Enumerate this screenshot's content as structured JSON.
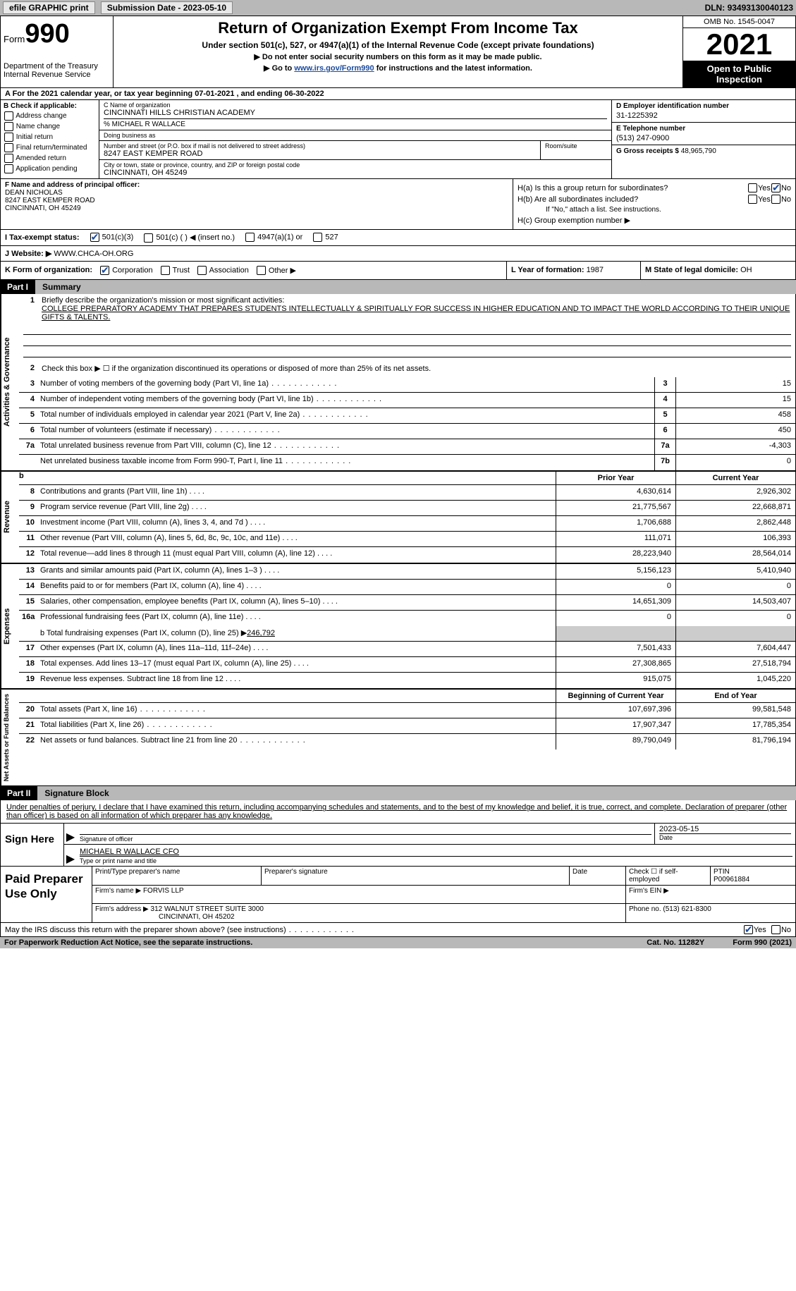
{
  "top": {
    "efile": "efile GRAPHIC print",
    "sub_date_lbl": "Submission Date - ",
    "sub_date": "2023-05-10",
    "dln_lbl": "DLN: ",
    "dln": "93493130040123"
  },
  "header": {
    "form_word": "Form",
    "form_no": "990",
    "dept1": "Department of the Treasury",
    "dept2": "Internal Revenue Service",
    "title": "Return of Organization Exempt From Income Tax",
    "sub1": "Under section 501(c), 527, or 4947(a)(1) of the Internal Revenue Code (except private foundations)",
    "sub2": "▶ Do not enter social security numbers on this form as it may be made public.",
    "sub3_pre": "▶ Go to ",
    "sub3_link": "www.irs.gov/Form990",
    "sub3_post": " for instructions and the latest information.",
    "omb": "OMB No. 1545-0047",
    "year": "2021",
    "open_inspect": "Open to Public Inspection"
  },
  "rowA": "A   For the 2021 calendar year, or tax year beginning 07-01-2021   , and ending 06-30-2022",
  "colB": {
    "hdr": "B Check if applicable:",
    "items": [
      "Address change",
      "Name change",
      "Initial return",
      "Final return/terminated",
      "Amended return",
      "Application pending"
    ]
  },
  "colC": {
    "name_lbl": "C Name of organization",
    "name": "CINCINNATI HILLS CHRISTIAN ACADEMY",
    "care_of": "% MICHAEL R WALLACE",
    "dba_lbl": "Doing business as",
    "addr_lbl": "Number and street (or P.O. box if mail is not delivered to street address)",
    "room_lbl": "Room/suite",
    "addr": "8247 EAST KEMPER ROAD",
    "city_lbl": "City or town, state or province, country, and ZIP or foreign postal code",
    "city": "CINCINNATI, OH  45249"
  },
  "colD": {
    "ein_lbl": "D Employer identification number",
    "ein": "31-1225392",
    "phone_lbl": "E Telephone number",
    "phone": "(513) 247-0900",
    "gross_lbl": "G Gross receipts $ ",
    "gross": "48,965,790"
  },
  "colF": {
    "lbl": "F Name and address of principal officer:",
    "name": "DEAN NICHOLAS",
    "addr1": "8247 EAST KEMPER ROAD",
    "addr2": "CINCINNATI, OH  45249"
  },
  "colH": {
    "ha": "H(a)  Is this a group return for subordinates?",
    "hb": "H(b)  Are all subordinates included?",
    "hb_note": "If \"No,\" attach a list. See instructions.",
    "hc": "H(c)  Group exemption number ▶",
    "yes": "Yes",
    "no": "No"
  },
  "rowI": {
    "lbl": "I   Tax-exempt status:",
    "o1": "501(c)(3)",
    "o2": "501(c) (  ) ◀ (insert no.)",
    "o3": "4947(a)(1) or",
    "o4": "527"
  },
  "rowJ": {
    "lbl": "J   Website: ▶  ",
    "val": "WWW.CHCA-OH.ORG"
  },
  "rowK": {
    "lbl": "K Form of organization:",
    "o1": "Corporation",
    "o2": "Trust",
    "o3": "Association",
    "o4": "Other ▶",
    "l_lbl": "L Year of formation: ",
    "l_val": "1987",
    "m_lbl": "M State of legal domicile: ",
    "m_val": "OH"
  },
  "part1": {
    "num": "Part I",
    "title": "Summary"
  },
  "activities": {
    "vtab": "Activities & Governance",
    "l1_lbl": "Briefly describe the organization's mission or most significant activities:",
    "l1_val": "COLLEGE PREPARATORY ACADEMY THAT PREPARES STUDENTS INTELLECTUALLY & SPIRITUALLY FOR SUCCESS IN HIGHER EDUCATION AND TO IMPACT THE WORLD ACCORDING TO THEIR UNIQUE GIFTS & TALENTS.",
    "l2": "Check this box ▶ ☐  if the organization discontinued its operations or disposed of more than 25% of its net assets.",
    "rows": [
      {
        "n": "3",
        "t": "Number of voting members of the governing body (Part VI, line 1a)",
        "box": "3",
        "v": "15"
      },
      {
        "n": "4",
        "t": "Number of independent voting members of the governing body (Part VI, line 1b)",
        "box": "4",
        "v": "15"
      },
      {
        "n": "5",
        "t": "Total number of individuals employed in calendar year 2021 (Part V, line 2a)",
        "box": "5",
        "v": "458"
      },
      {
        "n": "6",
        "t": "Total number of volunteers (estimate if necessary)",
        "box": "6",
        "v": "450"
      },
      {
        "n": "7a",
        "t": "Total unrelated business revenue from Part VIII, column (C), line 12",
        "box": "7a",
        "v": "-4,303"
      },
      {
        "n": "",
        "t": "Net unrelated business taxable income from Form 990-T, Part I, line 11",
        "box": "7b",
        "v": "0"
      }
    ]
  },
  "revenue": {
    "vtab": "Revenue",
    "hdr_b": "b",
    "col_prior": "Prior Year",
    "col_curr": "Current Year",
    "rows": [
      {
        "n": "8",
        "t": "Contributions and grants (Part VIII, line 1h)",
        "p": "4,630,614",
        "c": "2,926,302"
      },
      {
        "n": "9",
        "t": "Program service revenue (Part VIII, line 2g)",
        "p": "21,775,567",
        "c": "22,668,871"
      },
      {
        "n": "10",
        "t": "Investment income (Part VIII, column (A), lines 3, 4, and 7d )",
        "p": "1,706,688",
        "c": "2,862,448"
      },
      {
        "n": "11",
        "t": "Other revenue (Part VIII, column (A), lines 5, 6d, 8c, 9c, 10c, and 11e)",
        "p": "111,071",
        "c": "106,393"
      },
      {
        "n": "12",
        "t": "Total revenue—add lines 8 through 11 (must equal Part VIII, column (A), line 12)",
        "p": "28,223,940",
        "c": "28,564,014"
      }
    ]
  },
  "expenses": {
    "vtab": "Expenses",
    "rows": [
      {
        "n": "13",
        "t": "Grants and similar amounts paid (Part IX, column (A), lines 1–3 )",
        "p": "5,156,123",
        "c": "5,410,940"
      },
      {
        "n": "14",
        "t": "Benefits paid to or for members (Part IX, column (A), line 4)",
        "p": "0",
        "c": "0"
      },
      {
        "n": "15",
        "t": "Salaries, other compensation, employee benefits (Part IX, column (A), lines 5–10)",
        "p": "14,651,309",
        "c": "14,503,407"
      },
      {
        "n": "16a",
        "t": "Professional fundraising fees (Part IX, column (A), line 11e)",
        "p": "0",
        "c": "0"
      }
    ],
    "l16b": "b   Total fundraising expenses (Part IX, column (D), line 25) ▶",
    "l16b_val": "246,792",
    "rows2": [
      {
        "n": "17",
        "t": "Other expenses (Part IX, column (A), lines 11a–11d, 11f–24e)",
        "p": "7,501,433",
        "c": "7,604,447"
      },
      {
        "n": "18",
        "t": "Total expenses. Add lines 13–17 (must equal Part IX, column (A), line 25)",
        "p": "27,308,865",
        "c": "27,518,794"
      },
      {
        "n": "19",
        "t": "Revenue less expenses. Subtract line 18 from line 12",
        "p": "915,075",
        "c": "1,045,220"
      }
    ]
  },
  "netassets": {
    "vtab": "Net Assets or Fund Balances",
    "col_prior": "Beginning of Current Year",
    "col_curr": "End of Year",
    "rows": [
      {
        "n": "20",
        "t": "Total assets (Part X, line 16)",
        "p": "107,697,396",
        "c": "99,581,548"
      },
      {
        "n": "21",
        "t": "Total liabilities (Part X, line 26)",
        "p": "17,907,347",
        "c": "17,785,354"
      },
      {
        "n": "22",
        "t": "Net assets or fund balances. Subtract line 21 from line 20",
        "p": "89,790,049",
        "c": "81,796,194"
      }
    ]
  },
  "part2": {
    "num": "Part II",
    "title": "Signature Block"
  },
  "sig": {
    "intro": "Under penalties of perjury, I declare that I have examined this return, including accompanying schedules and statements, and to the best of my knowledge and belief, it is true, correct, and complete. Declaration of preparer (other than officer) is based on all information of which preparer has any knowledge.",
    "sign_here": "Sign Here",
    "sig_officer_lbl": "Signature of officer",
    "sig_date": "2023-05-15",
    "date_lbl": "Date",
    "name_title": "MICHAEL R WALLACE  CFO",
    "name_title_lbl": "Type or print name and title"
  },
  "prep": {
    "title": "Paid Preparer Use Only",
    "h1": "Print/Type preparer's name",
    "h2": "Preparer's signature",
    "h3": "Date",
    "h4_pre": "Check ☐ if self-employed",
    "h5": "PTIN",
    "ptin": "P00961884",
    "firm_name_lbl": "Firm's name    ▶ ",
    "firm_name": "FORVIS LLP",
    "firm_ein_lbl": "Firm's EIN ▶",
    "firm_addr_lbl": "Firm's address ▶ ",
    "firm_addr1": "312 WALNUT STREET SUITE 3000",
    "firm_addr2": "CINCINNATI, OH  45202",
    "phone_lbl": "Phone no. ",
    "phone": "(513) 621-8300"
  },
  "footer": {
    "discuss": "May the IRS discuss this return with the preparer shown above? (see instructions)",
    "yes": "Yes",
    "no": "No",
    "paperwork": "For Paperwork Reduction Act Notice, see the separate instructions.",
    "cat": "Cat. No. 11282Y",
    "form": "Form 990 (2021)"
  }
}
